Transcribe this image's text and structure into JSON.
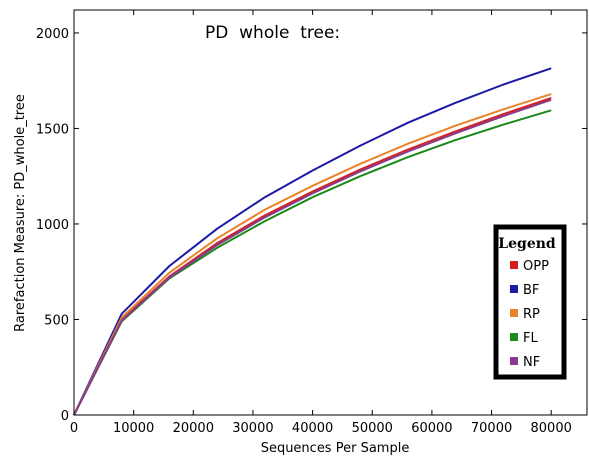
{
  "chart_data": {
    "type": "line",
    "title": "PD  whole  tree:",
    "xlabel": "Sequences Per Sample",
    "ylabel": "Rarefaction Measure: PD_whole_tree",
    "xlim": [
      0,
      86000
    ],
    "ylim": [
      0,
      2120
    ],
    "xticks": [
      "0",
      "10000",
      "20000",
      "30000",
      "40000",
      "50000",
      "60000",
      "70000",
      "80000"
    ],
    "yticks": [
      "0",
      "500",
      "1000",
      "1500",
      "2000"
    ],
    "grid": false,
    "legend": {
      "title": "Legend",
      "placement": "bottom-right"
    },
    "x": [
      0,
      8000,
      16000,
      24000,
      32000,
      40000,
      48000,
      56000,
      64000,
      72000,
      80000
    ],
    "series": [
      {
        "name": "OPP",
        "color": "#d62020",
        "values": [
          0,
          500,
          725,
          900,
          1045,
          1170,
          1285,
          1390,
          1485,
          1575,
          1660
        ]
      },
      {
        "name": "BF",
        "color": "#1a1aa6",
        "values": [
          0,
          530,
          780,
          975,
          1140,
          1280,
          1410,
          1530,
          1635,
          1730,
          1815
        ]
      },
      {
        "name": "RP",
        "color": "#e8832a",
        "values": [
          0,
          510,
          745,
          925,
          1075,
          1200,
          1315,
          1420,
          1515,
          1600,
          1680
        ]
      },
      {
        "name": "FL",
        "color": "#1a8a1a",
        "values": [
          0,
          490,
          715,
          875,
          1015,
          1140,
          1250,
          1350,
          1440,
          1520,
          1595
        ]
      },
      {
        "name": "NF",
        "color": "#8a3a8a",
        "values": [
          0,
          495,
          720,
          890,
          1035,
          1160,
          1275,
          1380,
          1475,
          1565,
          1650
        ]
      }
    ]
  }
}
